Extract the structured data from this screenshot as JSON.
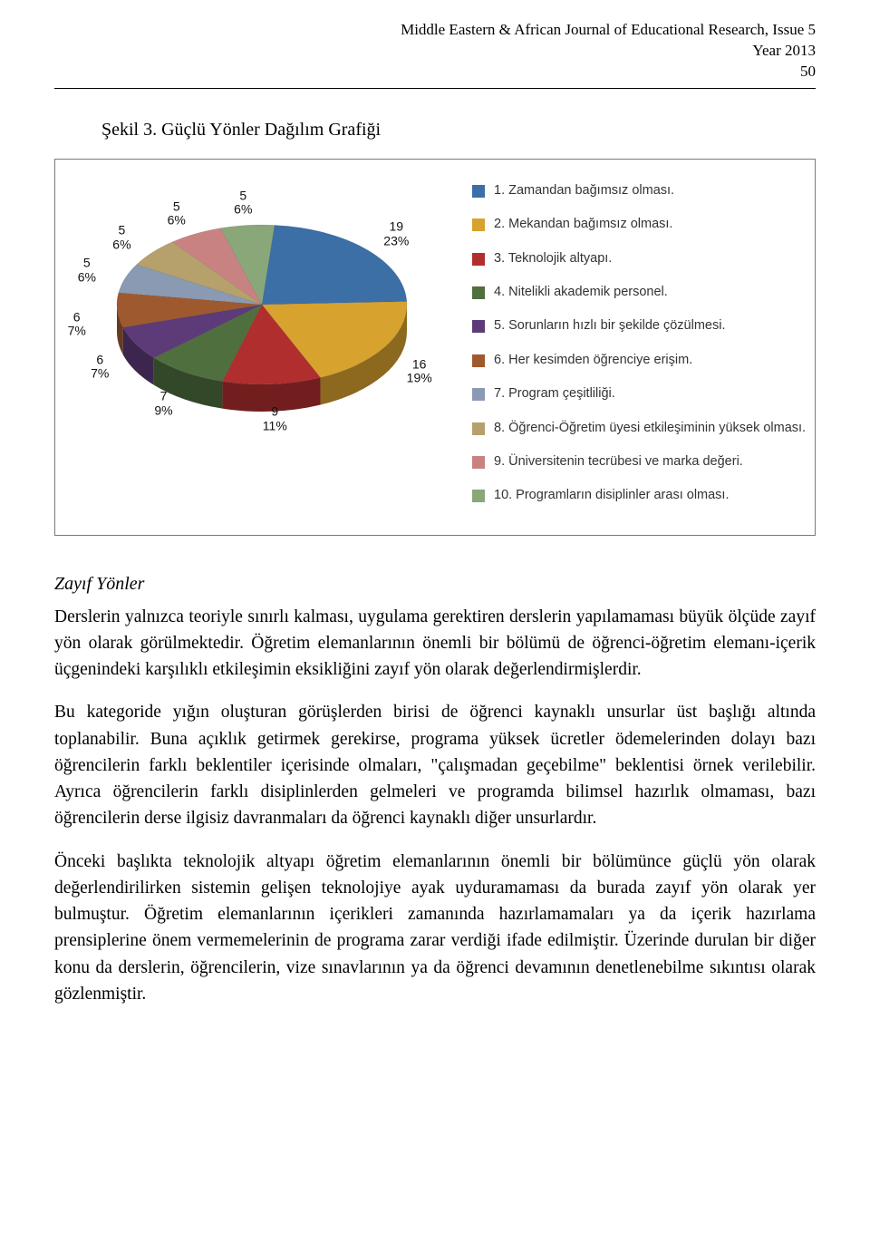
{
  "masthead": {
    "journal": "Middle Eastern & African Journal of Educational Research, Issue 5",
    "year": "Year 2013",
    "page_no": "50"
  },
  "caption": "Şekil 3. Güçlü Yönler Dağılım Grafiği",
  "chart": {
    "type": "pie-3d",
    "background_color": "#ffffff",
    "border_color": "#7a7a7a",
    "label_fontsize": 14,
    "legend_fontsize": 14,
    "slices": [
      {
        "label": "1. Zamandan bağımsız olması.",
        "n": 19,
        "pct": 23,
        "color": "#3b6fa6"
      },
      {
        "label": "2. Mekandan bağımsız olması.",
        "n": 16,
        "pct": 19,
        "color": "#d8a22e"
      },
      {
        "label": "3. Teknolojik altyapı.",
        "n": 9,
        "pct": 11,
        "color": "#b02e2e"
      },
      {
        "label": "4. Nitelikli akademik personel.",
        "n": 7,
        "pct": 9,
        "color": "#4f6f3f"
      },
      {
        "label": "5. Sorunların hızlı bir şekilde çözülmesi.",
        "n": 6,
        "pct": 7,
        "color": "#5d3a78"
      },
      {
        "label": "6. Her kesimden öğrenciye erişim.",
        "n": 6,
        "pct": 7,
        "color": "#9e5a2e"
      },
      {
        "label": "7. Program çeşitliliği.",
        "n": 5,
        "pct": 6,
        "color": "#8a9ab2"
      },
      {
        "label": "8. Öğrenci-Öğretim üyesi etkileşiminin yüksek olması.",
        "n": 5,
        "pct": 6,
        "color": "#b6a06c"
      },
      {
        "label": "9. Üniversitenin tecrübesi ve marka değeri.",
        "n": 5,
        "pct": 6,
        "color": "#c98282"
      },
      {
        "label": "10. Programların disiplinler arası olması.",
        "n": 5,
        "pct": 6,
        "color": "#8aa77a"
      }
    ]
  },
  "subhead": "Zayıf Yönler",
  "paras": {
    "p1": "Derslerin yalnızca teoriyle sınırlı kalması, uygulama gerektiren derslerin yapılamaması büyük ölçüde zayıf yön olarak görülmektedir. Öğretim elemanlarının önemli bir bölümü de öğrenci-öğretim elemanı-içerik üçgenindeki karşılıklı etkileşimin eksikliğini zayıf yön olarak değerlendirmişlerdir.",
    "p2": "Bu kategoride yığın oluşturan görüşlerden birisi de öğrenci kaynaklı unsurlar üst başlığı altında toplanabilir. Buna açıklık getirmek gerekirse, programa yüksek ücretler ödemelerinden dolayı bazı öğrencilerin farklı beklentiler içerisinde olmaları, \"çalışmadan geçebilme\" beklentisi örnek verilebilir. Ayrıca öğrencilerin farklı disiplinlerden gelmeleri ve programda bilimsel hazırlık olmaması, bazı öğrencilerin derse ilgisiz davranmaları da öğrenci kaynaklı diğer unsurlardır.",
    "p3": "Önceki başlıkta teknolojik altyapı öğretim elemanlarının önemli bir bölümünce güçlü yön olarak değerlendirilirken sistemin gelişen teknolojiye ayak uyduramaması da burada zayıf yön olarak yer bulmuştur. Öğretim elemanlarının içerikleri zamanında hazırlamamaları ya da içerik hazırlama prensiplerine önem vermemelerinin de programa zarar verdiği ifade edilmiştir. Üzerinde durulan bir diğer konu da derslerin, öğrencilerin, vize sınavlarının ya da öğrenci devamının denetlenebilme sıkıntısı olarak gözlenmiştir."
  }
}
